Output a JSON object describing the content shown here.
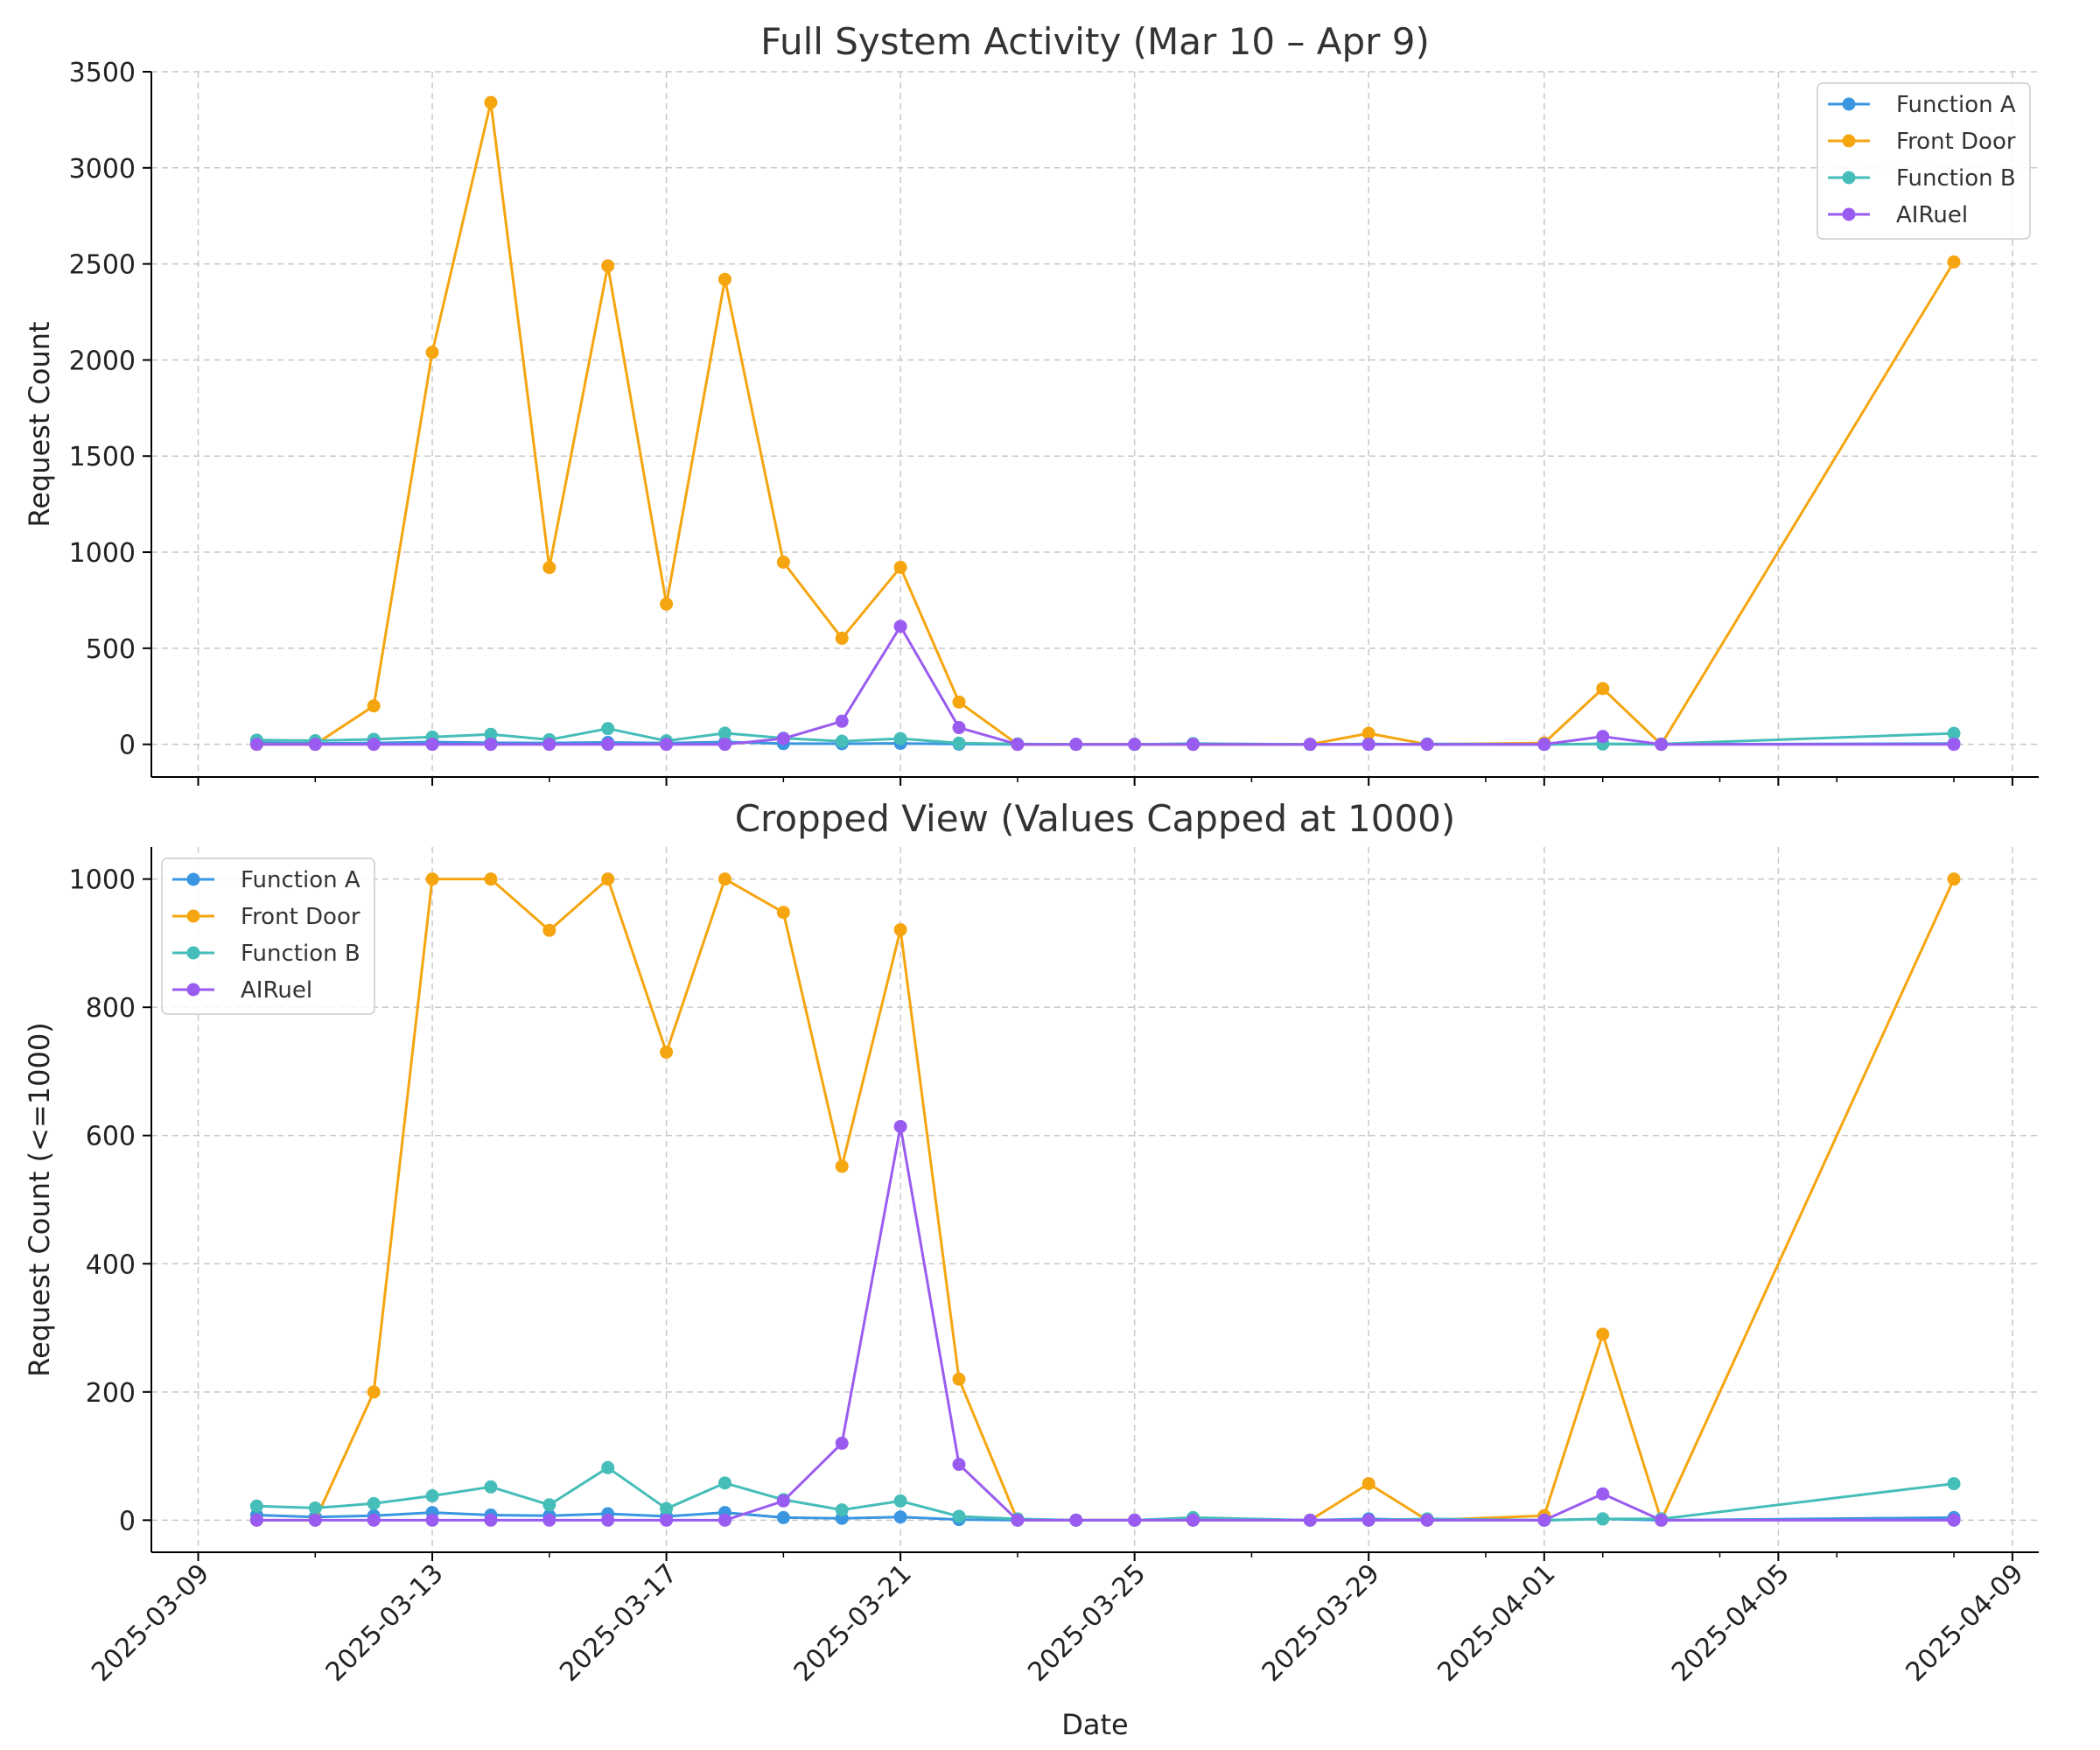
{
  "chart_data": [
    {
      "type": "line",
      "title": "Full System Activity (Mar 10 – Apr 9)",
      "xlabel": "",
      "ylabel": "Request Count",
      "ylim": [
        -170,
        3500
      ],
      "yticks": [
        0,
        500,
        1000,
        1500,
        2000,
        2500,
        3000,
        3500
      ],
      "xticks": [
        "2025-03-09",
        "2025-03-13",
        "2025-03-17",
        "2025-03-21",
        "2025-03-25",
        "2025-03-29",
        "2025-04-01",
        "2025-04-05",
        "2025-04-09"
      ],
      "grid": true,
      "legend_position": "top-right",
      "x": [
        "2025-03-10",
        "2025-03-11",
        "2025-03-12",
        "2025-03-13",
        "2025-03-14",
        "2025-03-15",
        "2025-03-16",
        "2025-03-17",
        "2025-03-18",
        "2025-03-19",
        "2025-03-20",
        "2025-03-21",
        "2025-03-22",
        "2025-03-23",
        "2025-03-24",
        "2025-03-25",
        "2025-03-26",
        "2025-03-28",
        "2025-03-29",
        "2025-03-30",
        "2025-04-01",
        "2025-04-02",
        "2025-04-03",
        "2025-04-08"
      ],
      "series": [
        {
          "name": "Function A",
          "color": "#3a96e0",
          "values": [
            8,
            5,
            7,
            12,
            8,
            7,
            10,
            6,
            12,
            4,
            3,
            5,
            1,
            0,
            0,
            0,
            0,
            0,
            2,
            0,
            0,
            2,
            0,
            4
          ]
        },
        {
          "name": "Front Door",
          "color": "#f5a50f",
          "values": [
            0,
            0,
            200,
            2040,
            3340,
            920,
            2490,
            730,
            2420,
            948,
            552,
            921,
            220,
            0,
            0,
            0,
            0,
            0,
            57,
            0,
            7,
            290,
            0,
            2510
          ]
        },
        {
          "name": "Function B",
          "color": "#45bdb8",
          "values": [
            22,
            19,
            26,
            38,
            52,
            24,
            82,
            18,
            58,
            32,
            16,
            30,
            6,
            2,
            0,
            0,
            4,
            0,
            0,
            2,
            0,
            2,
            2,
            57
          ]
        },
        {
          "name": "AIRuel",
          "color": "#9a5cf0",
          "values": [
            0,
            0,
            0,
            0,
            0,
            0,
            0,
            0,
            0,
            30,
            120,
            614,
            87,
            0,
            0,
            0,
            0,
            0,
            0,
            0,
            0,
            41,
            0,
            0
          ]
        }
      ]
    },
    {
      "type": "line",
      "title": "Cropped View (Values Capped at 1000)",
      "xlabel": "Date",
      "ylabel": "Request Count (<=1000)",
      "ylim": [
        -50,
        1050
      ],
      "yticks": [
        0,
        200,
        400,
        600,
        800,
        1000
      ],
      "xticks": [
        "2025-03-09",
        "2025-03-13",
        "2025-03-17",
        "2025-03-21",
        "2025-03-25",
        "2025-03-29",
        "2025-04-01",
        "2025-04-05",
        "2025-04-09"
      ],
      "grid": true,
      "legend_position": "top-left",
      "x": [
        "2025-03-10",
        "2025-03-11",
        "2025-03-12",
        "2025-03-13",
        "2025-03-14",
        "2025-03-15",
        "2025-03-16",
        "2025-03-17",
        "2025-03-18",
        "2025-03-19",
        "2025-03-20",
        "2025-03-21",
        "2025-03-22",
        "2025-03-23",
        "2025-03-24",
        "2025-03-25",
        "2025-03-26",
        "2025-03-28",
        "2025-03-29",
        "2025-03-30",
        "2025-04-01",
        "2025-04-02",
        "2025-04-03",
        "2025-04-08"
      ],
      "series": [
        {
          "name": "Function A",
          "color": "#3a96e0",
          "values": [
            8,
            5,
            7,
            12,
            8,
            7,
            10,
            6,
            12,
            4,
            3,
            5,
            1,
            0,
            0,
            0,
            0,
            0,
            2,
            0,
            0,
            2,
            0,
            4
          ]
        },
        {
          "name": "Front Door",
          "color": "#f5a50f",
          "values": [
            0,
            0,
            200,
            1000,
            1000,
            920,
            1000,
            730,
            1000,
            948,
            552,
            921,
            220,
            0,
            0,
            0,
            0,
            0,
            57,
            0,
            7,
            290,
            0,
            1000
          ]
        },
        {
          "name": "Function B",
          "color": "#45bdb8",
          "values": [
            22,
            19,
            26,
            38,
            52,
            24,
            82,
            18,
            58,
            32,
            16,
            30,
            6,
            2,
            0,
            0,
            4,
            0,
            0,
            2,
            0,
            2,
            2,
            57
          ]
        },
        {
          "name": "AIRuel",
          "color": "#9a5cf0",
          "values": [
            0,
            0,
            0,
            0,
            0,
            0,
            0,
            0,
            0,
            30,
            120,
            614,
            87,
            0,
            0,
            0,
            0,
            0,
            0,
            0,
            0,
            41,
            0,
            0
          ]
        }
      ]
    }
  ]
}
